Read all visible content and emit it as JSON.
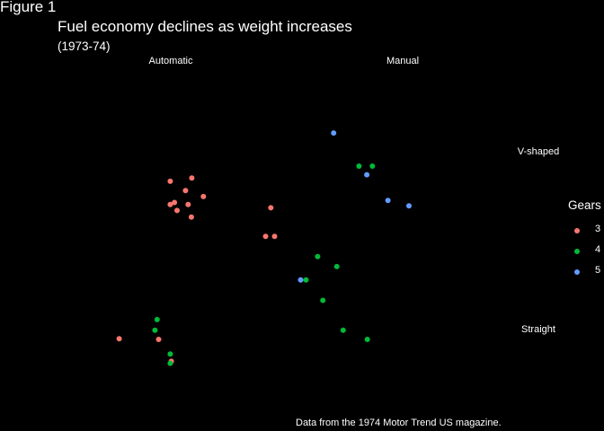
{
  "figure_tag": "Figure 1",
  "colors": {
    "background": "#000000",
    "text": "#ffffff",
    "3": "#F8766D",
    "4": "#00BA38",
    "5": "#619CFF"
  },
  "chart_data": {
    "type": "scatter",
    "title": "Fuel economy declines as weight increases",
    "subtitle": "(1973-74)",
    "caption": "Data from the 1974 Motor Trend US magazine.",
    "xlabel": "",
    "ylabel": "",
    "grid": false,
    "axes_visible": false,
    "x_variable": "wt",
    "y_variable": "mpg",
    "facet_cols": [
      "Automatic",
      "Manual"
    ],
    "facet_rows": [
      "V-shaped",
      "Straight"
    ],
    "legend": {
      "title": "Gears",
      "placement": "right",
      "entries": [
        "3",
        "4",
        "5"
      ]
    },
    "xlim": [
      1.3,
      5.6
    ],
    "ylim": [
      9.2,
      35.1
    ],
    "points": [
      {
        "col": "Automatic",
        "row": "V-shaped",
        "gear": "3",
        "wt": 3.44,
        "mpg": 18.7
      },
      {
        "col": "Automatic",
        "row": "V-shaped",
        "gear": "3",
        "wt": 3.57,
        "mpg": 14.3
      },
      {
        "col": "Automatic",
        "row": "V-shaped",
        "gear": "3",
        "wt": 4.07,
        "mpg": 16.4
      },
      {
        "col": "Automatic",
        "row": "V-shaped",
        "gear": "3",
        "wt": 3.73,
        "mpg": 17.3
      },
      {
        "col": "Automatic",
        "row": "V-shaped",
        "gear": "3",
        "wt": 3.78,
        "mpg": 15.2
      },
      {
        "col": "Automatic",
        "row": "V-shaped",
        "gear": "3",
        "wt": 5.25,
        "mpg": 10.4
      },
      {
        "col": "Automatic",
        "row": "V-shaped",
        "gear": "3",
        "wt": 5.42,
        "mpg": 10.4
      },
      {
        "col": "Automatic",
        "row": "V-shaped",
        "gear": "3",
        "wt": 5.35,
        "mpg": 14.7
      },
      {
        "col": "Automatic",
        "row": "V-shaped",
        "gear": "3",
        "wt": 3.52,
        "mpg": 15.5
      },
      {
        "col": "Automatic",
        "row": "V-shaped",
        "gear": "3",
        "wt": 3.44,
        "mpg": 15.2
      },
      {
        "col": "Automatic",
        "row": "V-shaped",
        "gear": "3",
        "wt": 3.84,
        "mpg": 13.3
      },
      {
        "col": "Automatic",
        "row": "V-shaped",
        "gear": "3",
        "wt": 3.85,
        "mpg": 19.2
      },
      {
        "col": "Automatic",
        "row": "Straight",
        "gear": "3",
        "wt": 3.22,
        "mpg": 21.4
      },
      {
        "col": "Automatic",
        "row": "Straight",
        "gear": "3",
        "wt": 3.46,
        "mpg": 18.1
      },
      {
        "col": "Automatic",
        "row": "Straight",
        "gear": "3",
        "wt": 2.47,
        "mpg": 21.5
      },
      {
        "col": "Automatic",
        "row": "Straight",
        "gear": "4",
        "wt": 3.19,
        "mpg": 24.4
      },
      {
        "col": "Automatic",
        "row": "Straight",
        "gear": "4",
        "wt": 3.15,
        "mpg": 22.8
      },
      {
        "col": "Automatic",
        "row": "Straight",
        "gear": "4",
        "wt": 3.44,
        "mpg": 19.2
      },
      {
        "col": "Automatic",
        "row": "Straight",
        "gear": "4",
        "wt": 3.44,
        "mpg": 17.8
      },
      {
        "col": "Manual",
        "row": "V-shaped",
        "gear": "4",
        "wt": 2.62,
        "mpg": 21.0
      },
      {
        "col": "Manual",
        "row": "V-shaped",
        "gear": "4",
        "wt": 2.875,
        "mpg": 21.0
      },
      {
        "col": "Manual",
        "row": "V-shaped",
        "gear": "5",
        "wt": 2.14,
        "mpg": 26.0
      },
      {
        "col": "Manual",
        "row": "V-shaped",
        "gear": "5",
        "wt": 3.17,
        "mpg": 15.8
      },
      {
        "col": "Manual",
        "row": "V-shaped",
        "gear": "5",
        "wt": 2.77,
        "mpg": 19.7
      },
      {
        "col": "Manual",
        "row": "V-shaped",
        "gear": "5",
        "wt": 3.57,
        "mpg": 15.0
      },
      {
        "col": "Manual",
        "row": "Straight",
        "gear": "4",
        "wt": 2.32,
        "mpg": 22.8
      },
      {
        "col": "Manual",
        "row": "Straight",
        "gear": "4",
        "wt": 2.2,
        "mpg": 32.4
      },
      {
        "col": "Manual",
        "row": "Straight",
        "gear": "4",
        "wt": 1.615,
        "mpg": 30.4
      },
      {
        "col": "Manual",
        "row": "Straight",
        "gear": "4",
        "wt": 1.835,
        "mpg": 33.9
      },
      {
        "col": "Manual",
        "row": "Straight",
        "gear": "4",
        "wt": 1.935,
        "mpg": 27.3
      },
      {
        "col": "Manual",
        "row": "Straight",
        "gear": "5",
        "wt": 1.513,
        "mpg": 30.4
      },
      {
        "col": "Manual",
        "row": "Straight",
        "gear": "4",
        "wt": 2.78,
        "mpg": 21.4
      }
    ]
  }
}
